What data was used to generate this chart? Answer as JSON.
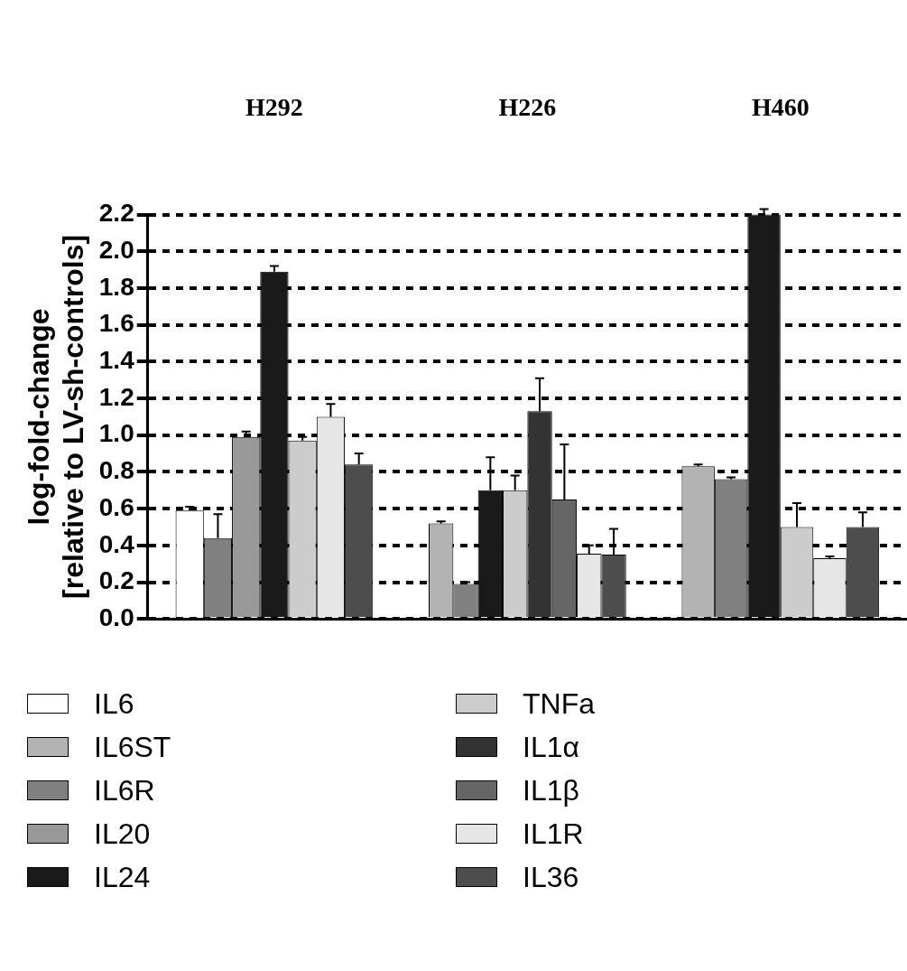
{
  "chart_data": {
    "type": "bar",
    "categories": [
      "H292",
      "H226",
      "H460"
    ],
    "ylabel": "log-fold-change\n[relative to LV-sh-controls]",
    "ylim": [
      0,
      2.2
    ],
    "yticks": [
      {
        "value": 0,
        "label": "0.0"
      },
      {
        "value": 0.2,
        "label": "0.2"
      },
      {
        "value": 0.4,
        "label": "0.4"
      },
      {
        "value": 0.6,
        "label": "0.6"
      },
      {
        "value": 0.8,
        "label": "0.8"
      },
      {
        "value": 1,
        "label": "1.0"
      },
      {
        "value": 1.2,
        "label": "1.2"
      },
      {
        "value": 1.4,
        "label": "1.4"
      },
      {
        "value": 1.6,
        "label": "1.6"
      },
      {
        "value": 1.8,
        "label": "1.8"
      },
      {
        "value": 2,
        "label": "2.0"
      },
      {
        "value": 2.2,
        "label": "2.2"
      }
    ],
    "grid": "y",
    "legend": "bottom",
    "series": [
      {
        "name": "IL6",
        "color": "#ffffff",
        "values": [
          0.59,
          null,
          null
        ],
        "errors": [
          [
            0.59,
            0.61
          ],
          null,
          null
        ]
      },
      {
        "name": "IL6ST",
        "color": "#b3b3b3",
        "values": [
          null,
          0.52,
          0.83
        ],
        "errors": [
          null,
          [
            0.52,
            0.53
          ],
          [
            0.83,
            0.84
          ]
        ]
      },
      {
        "name": "IL6R",
        "color": "#808080",
        "values": [
          0.44,
          0.19,
          0.76
        ],
        "errors": [
          [
            0.44,
            0.57
          ],
          [
            0.19,
            0.2
          ],
          [
            0.76,
            0.77
          ]
        ]
      },
      {
        "name": "IL20",
        "color": "#999999",
        "values": [
          0.99,
          null,
          null
        ],
        "errors": [
          [
            0.99,
            1.02
          ],
          null,
          null
        ]
      },
      {
        "name": "IL24",
        "color": "#1a1a1a",
        "values": [
          1.89,
          0.7,
          2.2
        ],
        "errors": [
          [
            1.89,
            1.92
          ],
          [
            0.7,
            0.88
          ],
          [
            2.2,
            2.23
          ]
        ]
      },
      {
        "name": "TNFa",
        "color": "#cccccc",
        "values": [
          0.97,
          0.7,
          0.5
        ],
        "errors": [
          [
            0.97,
            0.99
          ],
          [
            0.7,
            0.78
          ],
          [
            0.5,
            0.63
          ]
        ]
      },
      {
        "name": "IL1α",
        "color": "#333333",
        "values": [
          null,
          1.13,
          null
        ],
        "errors": [
          null,
          [
            1.13,
            1.31
          ],
          null
        ]
      },
      {
        "name": "IL1β",
        "color": "#666666",
        "values": [
          null,
          0.65,
          null
        ],
        "errors": [
          null,
          [
            0.65,
            0.95
          ],
          null
        ]
      },
      {
        "name": "IL1R",
        "color": "#e6e6e6",
        "values": [
          1.1,
          0.355,
          0.33
        ],
        "errors": [
          [
            1.1,
            1.17
          ],
          [
            0.355,
            0.4
          ],
          [
            0.33,
            0.34
          ]
        ]
      },
      {
        "name": "IL36",
        "color": "#4d4d4d",
        "values": [
          0.84,
          0.35,
          0.5
        ],
        "errors": [
          [
            0.84,
            0.9
          ],
          [
            0.35,
            0.49
          ],
          [
            0.5,
            0.58
          ]
        ]
      }
    ]
  }
}
